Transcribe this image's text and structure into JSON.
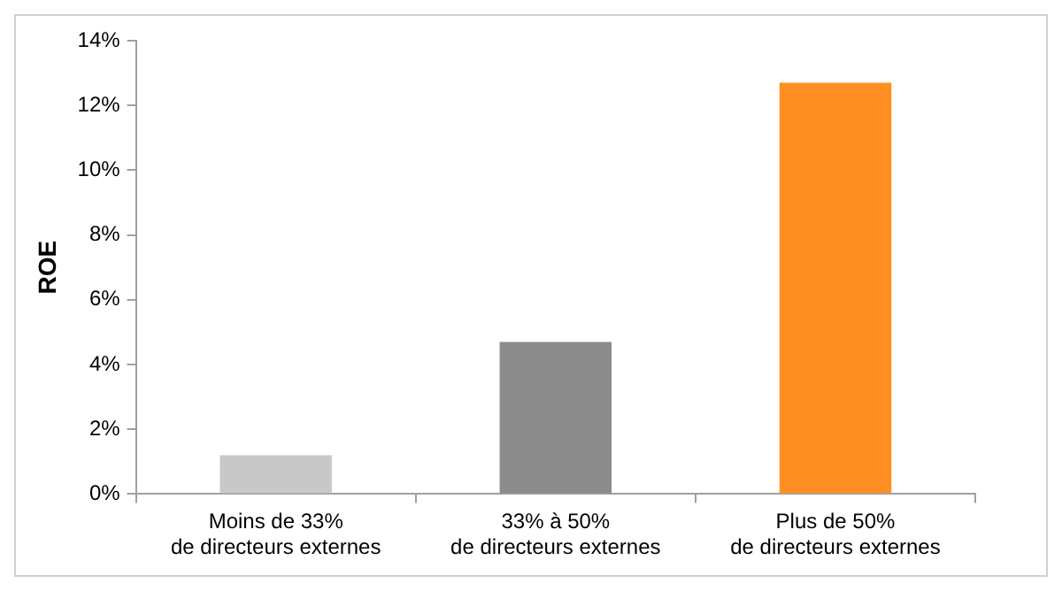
{
  "chart_data": {
    "type": "bar",
    "ylabel": "ROE",
    "categories": [
      "Moins de 33%\nde directeurs externes",
      "33% à 50%\nde directeurs externes",
      "Plus de 50%\nde directeurs externes"
    ],
    "values": [
      1.2,
      4.7,
      12.7
    ],
    "colors": [
      "#c8c8c8",
      "#8c8c8c",
      "#ff8f22"
    ],
    "ylim": [
      0,
      14
    ],
    "yticks": [
      {
        "value": 0,
        "label": "0%"
      },
      {
        "value": 2,
        "label": "2%"
      },
      {
        "value": 4,
        "label": "4%"
      },
      {
        "value": 6,
        "label": "6%"
      },
      {
        "value": 8,
        "label": "8%"
      },
      {
        "value": 10,
        "label": "10%"
      },
      {
        "value": 12,
        "label": "12%"
      },
      {
        "value": 14,
        "label": "14%"
      }
    ],
    "grid": false,
    "legend": false
  }
}
